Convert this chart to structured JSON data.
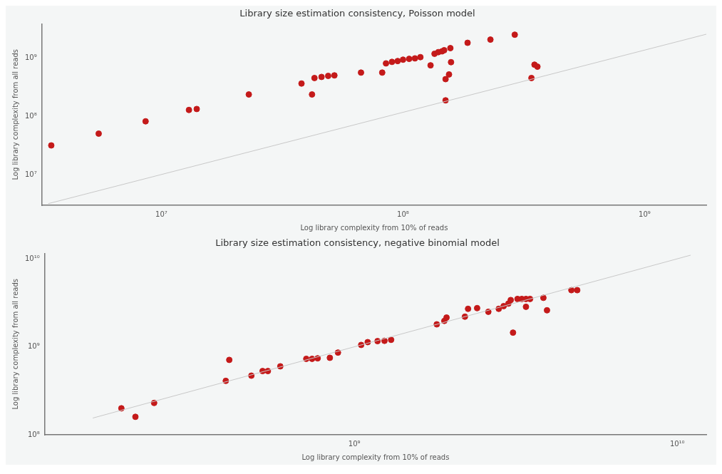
{
  "chart_data": [
    {
      "type": "scatter",
      "title": "Library size estimation consistency, Poisson model",
      "xlabel": "Log library complexity from 10% of reads",
      "ylabel": "Log library complexity from all reads",
      "log": "xy",
      "grid": false,
      "xlim": [
        3200000,
        1800000000
      ],
      "ylim": [
        3000000,
        3900000000
      ],
      "xticks": [
        {
          "value": 10000000,
          "label": "10⁷"
        },
        {
          "value": 100000000,
          "label": "10⁸"
        },
        {
          "value": 1000000000,
          "label": "10⁹"
        }
      ],
      "yticks": [
        {
          "value": 10000000,
          "label": "10⁷"
        },
        {
          "value": 100000000,
          "label": "10⁸"
        },
        {
          "value": 1000000000,
          "label": "10⁹"
        }
      ],
      "series": [
        {
          "marker": "circle",
          "color": "#c41a1a",
          "x": [
            3500000,
            5500000,
            8600000,
            13000000,
            14000000,
            23000000,
            38000000,
            42000000,
            43000000,
            46000000,
            49000000,
            52000000,
            67000000,
            82000000,
            85000000,
            90000000,
            95000000,
            100000000,
            106000000,
            112000000,
            118000000,
            130000000,
            135000000,
            140000000,
            145000000,
            148000000,
            157000000,
            150000000,
            155000000,
            158000000,
            150000000,
            185000000,
            230000000,
            290000000,
            350000000,
            360000000,
            340000000
          ],
          "values": [
            32000000,
            51000000,
            83000000,
            130000000,
            135000000,
            240000000,
            370000000,
            240000000,
            460000000,
            480000000,
            500000000,
            510000000,
            570000000,
            570000000,
            820000000,
            870000000,
            900000000,
            950000000,
            980000000,
            1000000000,
            1050000000,
            760000000,
            1200000000,
            1280000000,
            1320000000,
            1380000000,
            1500000000,
            440000000,
            530000000,
            860000000,
            190000000,
            1850000000,
            2100000000,
            2550000000,
            780000000,
            720000000,
            460000000
          ]
        },
        {
          "type": "line",
          "color": "#c8c8c8",
          "x": [
            3400000,
            1800000000
          ],
          "values": [
            3200000,
            2600000000
          ]
        }
      ]
    },
    {
      "type": "scatter",
      "title": "Library size estimation consistency, negative binomial model",
      "xlabel": "Log library complexity from 10% of reads",
      "ylabel": "Log library complexity from all reads",
      "log": "xy",
      "grid": false,
      "xlim": [
        110000000,
        12300000000
      ],
      "ylim": [
        100000000,
        11500000000
      ],
      "xticks": [
        {
          "value": 1000000000,
          "label": "10⁹"
        },
        {
          "value": 10000000000,
          "label": "10¹⁰"
        }
      ],
      "yticks": [
        {
          "value": 100000000,
          "label": "10⁸"
        },
        {
          "value": 1000000000,
          "label": "10⁹"
        },
        {
          "value": 10000000000,
          "label": "10¹⁰"
        }
      ],
      "series": [
        {
          "marker": "circle",
          "color": "#c41a1a",
          "x": [
            190000000,
            210000000,
            240000000,
            400000000,
            410000000,
            480000000,
            520000000,
            540000000,
            590000000,
            710000000,
            740000000,
            770000000,
            840000000,
            890000000,
            1050000000,
            1100000000,
            1180000000,
            1240000000,
            1300000000,
            1800000000,
            1900000000,
            1930000000,
            2200000000,
            2250000000,
            2400000000,
            2600000000,
            2800000000,
            2900000000,
            3000000000,
            3050000000,
            3100000000,
            3200000000,
            3300000000,
            3400000000,
            3500000000,
            3400000000,
            3850000000,
            3950000000,
            4700000000,
            4900000000
          ],
          "values": [
            200000000,
            160000000,
            230000000,
            410000000,
            710000000,
            470000000,
            530000000,
            530000000,
            600000000,
            730000000,
            730000000,
            740000000,
            750000000,
            860000000,
            1050000000,
            1130000000,
            1160000000,
            1170000000,
            1200000000,
            1800000000,
            1970000000,
            2150000000,
            2200000000,
            2700000000,
            2750000000,
            2500000000,
            2700000000,
            2900000000,
            3100000000,
            3400000000,
            1450000000,
            3500000000,
            3500000000,
            3500000000,
            3500000000,
            2850000000,
            3600000000,
            2600000000,
            4400000000,
            4400000000
          ]
        },
        {
          "type": "line",
          "color": "#c8c8c8",
          "x": [
            155000000,
            11000000000
          ],
          "values": [
            155000000,
            11000000000
          ]
        }
      ]
    }
  ]
}
